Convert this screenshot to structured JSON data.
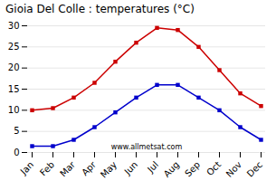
{
  "chart_data": {
    "type": "line",
    "title": "Gioia Del Colle : temperatures (°C)",
    "categories": [
      "Jan",
      "Feb",
      "Mar",
      "Apr",
      "May",
      "Jun",
      "Jul",
      "Aug",
      "Sep",
      "Oct",
      "Nov",
      "Dec"
    ],
    "series": [
      {
        "color": "#cc0000",
        "values": [
          10.0,
          10.5,
          13.0,
          16.5,
          21.5,
          26.0,
          29.5,
          29.0,
          25.0,
          19.5,
          14.0,
          11.0
        ]
      },
      {
        "color": "#0000cc",
        "values": [
          1.5,
          1.5,
          3.0,
          6.0,
          9.5,
          13.0,
          16.0,
          16.0,
          13.0,
          10.0,
          6.0,
          3.0
        ]
      }
    ],
    "ylim": [
      0,
      30
    ],
    "yticks": [
      0,
      5,
      10,
      15,
      20,
      25,
      30
    ],
    "grid": true,
    "marker": "square",
    "annotations": [
      "www.allmetsat.com"
    ]
  }
}
